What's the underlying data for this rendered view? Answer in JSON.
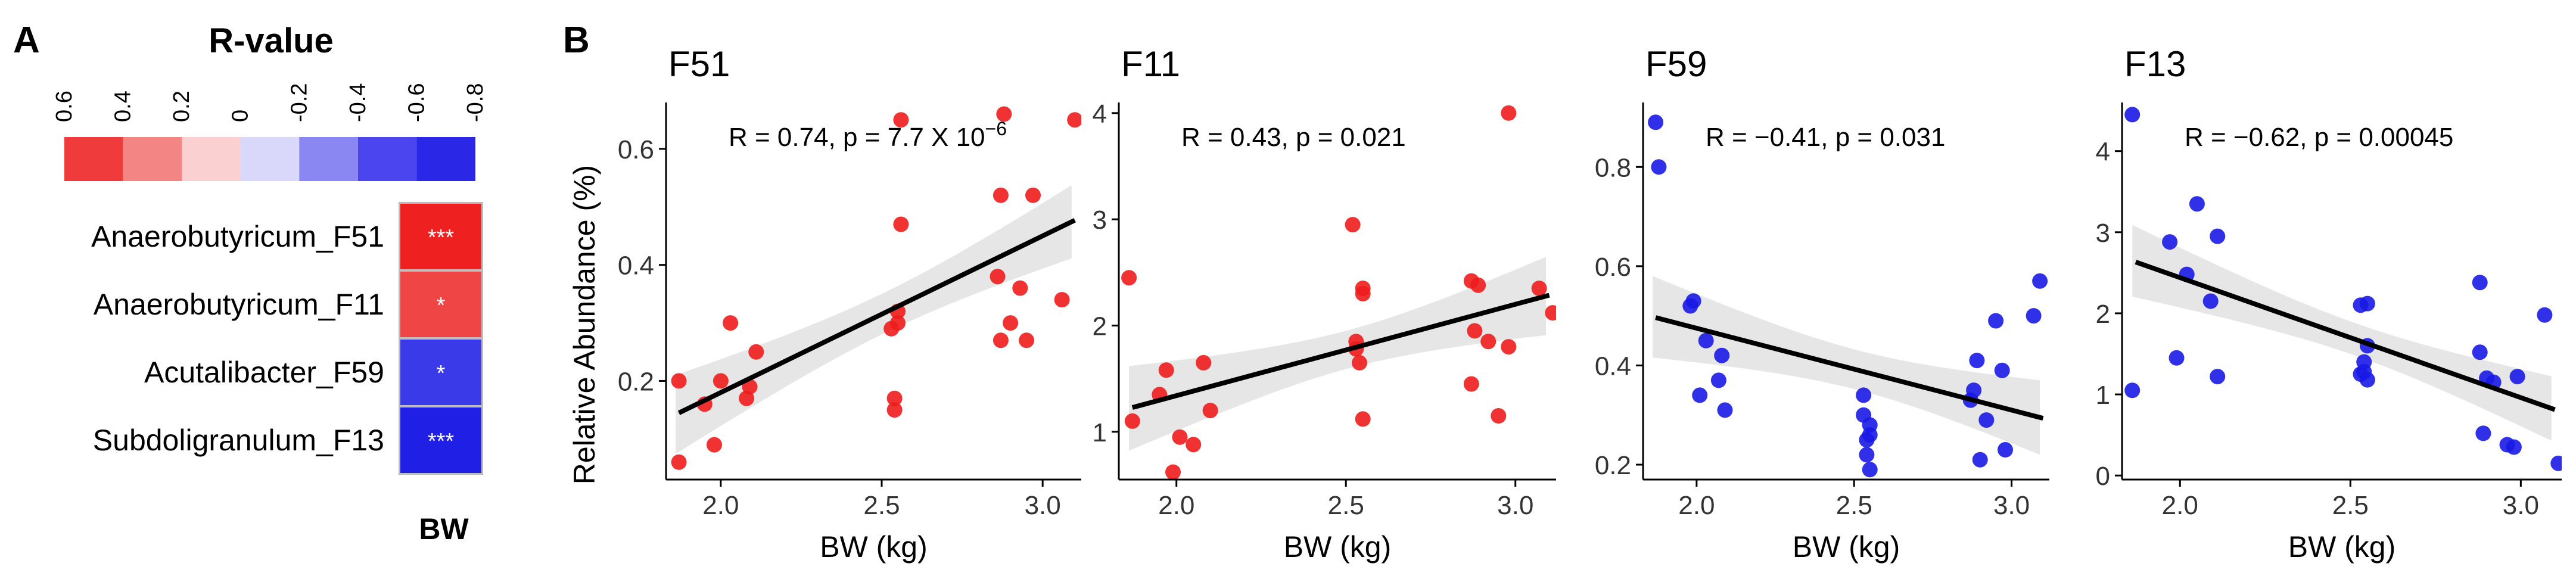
{
  "panel_a": {
    "label": "A",
    "legend_title": "R-value",
    "legend_ticks": [
      "0.6",
      "0.4",
      "0.2",
      "0",
      "-0.2",
      "-0.4",
      "-0.6",
      "-0.8"
    ],
    "legend_colors": [
      "#ef3b3b",
      "#f48585",
      "#fbd0d0",
      "#d9d8fb",
      "#8a87f2",
      "#4a45ee",
      "#2a27e6"
    ],
    "rows": [
      {
        "name": "Anaerobutyricum_F51",
        "r": 0.74,
        "stars": "***",
        "color": "#ef2020"
      },
      {
        "name": "Anaerobutyricum_F11",
        "r": 0.43,
        "stars": "*",
        "color": "#ef4545"
      },
      {
        "name": "Acutalibacter_F59",
        "r": -0.41,
        "stars": "*",
        "color": "#3a3ae8"
      },
      {
        "name": "Subdoligranulum_F13",
        "r": -0.62,
        "stars": "***",
        "color": "#1f1fe6"
      }
    ],
    "column_label": "BW"
  },
  "panel_b": {
    "label": "B",
    "ylabel": "Relative Abundance (%)"
  },
  "chart_data": [
    {
      "type": "scatter",
      "title": "F51",
      "xlabel": "BW (kg)",
      "ylabel": "Relative Abundance (%)",
      "color": "#ee1c1c",
      "xlim": [
        1.83,
        3.12
      ],
      "ylim": [
        0.03,
        0.68
      ],
      "xticks": [
        "2.0",
        "2.5",
        "3.0"
      ],
      "xtick_values": [
        2.0,
        2.5,
        3.0
      ],
      "yticks": [
        "0.2",
        "0.4",
        "0.6"
      ],
      "ytick_values": [
        0.2,
        0.4,
        0.6
      ],
      "stat": {
        "prefix": "R = 0.74, p = 7.7 X 10",
        "sup": "−6"
      },
      "fit": {
        "slope": 0.27,
        "intercept": -0.36
      },
      "band": {
        "se0": 0.035,
        "slope_se": 0.09
      },
      "points": [
        [
          1.87,
          0.2
        ],
        [
          1.87,
          0.06
        ],
        [
          1.95,
          0.16
        ],
        [
          1.98,
          0.09
        ],
        [
          2.0,
          0.2
        ],
        [
          2.03,
          0.3
        ],
        [
          2.08,
          0.17
        ],
        [
          2.09,
          0.19
        ],
        [
          2.11,
          0.25
        ],
        [
          2.54,
          0.15
        ],
        [
          2.54,
          0.17
        ],
        [
          2.53,
          0.29
        ],
        [
          2.55,
          0.3
        ],
        [
          2.55,
          0.32
        ],
        [
          2.56,
          0.47
        ],
        [
          2.56,
          0.65
        ],
        [
          2.86,
          0.38
        ],
        [
          2.87,
          0.52
        ],
        [
          2.87,
          0.27
        ],
        [
          2.88,
          0.66
        ],
        [
          2.9,
          0.3
        ],
        [
          2.93,
          0.36
        ],
        [
          2.95,
          0.27
        ],
        [
          2.97,
          0.52
        ],
        [
          3.06,
          0.34
        ],
        [
          3.1,
          0.65
        ]
      ]
    },
    {
      "type": "scatter",
      "title": "F11",
      "xlabel": "BW (kg)",
      "ylabel": "",
      "color": "#ee1c1c",
      "xlim": [
        1.83,
        3.12
      ],
      "ylim": [
        0.55,
        4.1
      ],
      "xticks": [
        "2.0",
        "2.5",
        "3.0"
      ],
      "xtick_values": [
        2.0,
        2.5,
        3.0
      ],
      "yticks": [
        "1",
        "2",
        "3",
        "4"
      ],
      "ytick_values": [
        1,
        2,
        3,
        4
      ],
      "stat": {
        "prefix": "R = 0.43, p = 0.021",
        "sup": ""
      },
      "fit": {
        "slope": 0.86,
        "intercept": -0.38
      },
      "band": {
        "se0": 0.18,
        "slope_se": 0.55
      },
      "points": [
        [
          1.86,
          2.45
        ],
        [
          1.87,
          1.1
        ],
        [
          1.95,
          1.35
        ],
        [
          1.97,
          1.58
        ],
        [
          1.99,
          0.62
        ],
        [
          2.01,
          0.95
        ],
        [
          2.05,
          0.88
        ],
        [
          2.08,
          1.65
        ],
        [
          2.1,
          1.2
        ],
        [
          2.52,
          2.95
        ],
        [
          2.53,
          1.85
        ],
        [
          2.53,
          1.78
        ],
        [
          2.54,
          1.65
        ],
        [
          2.55,
          2.3
        ],
        [
          2.55,
          2.35
        ],
        [
          2.55,
          1.12
        ],
        [
          2.87,
          2.42
        ],
        [
          2.87,
          1.45
        ],
        [
          2.88,
          1.95
        ],
        [
          2.89,
          2.38
        ],
        [
          2.92,
          1.85
        ],
        [
          2.95,
          1.15
        ],
        [
          2.98,
          4.0
        ],
        [
          2.98,
          1.8
        ],
        [
          3.07,
          2.35
        ],
        [
          3.11,
          2.12
        ]
      ]
    },
    {
      "type": "scatter",
      "title": "F59",
      "xlabel": "BW (kg)",
      "ylabel": "",
      "color": "#1a1ae6",
      "xlim": [
        1.83,
        3.12
      ],
      "ylim": [
        0.17,
        0.93
      ],
      "xticks": [
        "2.0",
        "2.5",
        "3.0"
      ],
      "xtick_values": [
        2.0,
        2.5,
        3.0
      ],
      "yticks": [
        "0.2",
        "0.4",
        "0.6",
        "0.8"
      ],
      "ytick_values": [
        0.2,
        0.4,
        0.6,
        0.8
      ],
      "stat": {
        "prefix": "R = −0.41, p = 0.031",
        "sup": ""
      },
      "fit": {
        "slope": -0.165,
        "intercept": 0.805
      },
      "band": {
        "se0": 0.04,
        "slope_se": 0.11
      },
      "points": [
        [
          1.87,
          0.89
        ],
        [
          1.88,
          0.8
        ],
        [
          1.98,
          0.52
        ],
        [
          1.99,
          0.53
        ],
        [
          2.01,
          0.34
        ],
        [
          2.03,
          0.45
        ],
        [
          2.07,
          0.37
        ],
        [
          2.08,
          0.42
        ],
        [
          2.09,
          0.31
        ],
        [
          2.53,
          0.34
        ],
        [
          2.53,
          0.3
        ],
        [
          2.54,
          0.25
        ],
        [
          2.54,
          0.22
        ],
        [
          2.55,
          0.28
        ],
        [
          2.55,
          0.26
        ],
        [
          2.55,
          0.19
        ],
        [
          2.87,
          0.33
        ],
        [
          2.88,
          0.35
        ],
        [
          2.89,
          0.41
        ],
        [
          2.9,
          0.21
        ],
        [
          2.92,
          0.29
        ],
        [
          2.95,
          0.49
        ],
        [
          2.97,
          0.39
        ],
        [
          2.98,
          0.23
        ],
        [
          3.07,
          0.5
        ],
        [
          3.09,
          0.57
        ]
      ]
    },
    {
      "type": "scatter",
      "title": "F13",
      "xlabel": "BW (kg)",
      "ylabel": "",
      "color": "#1a1ae6",
      "xlim": [
        1.83,
        3.12
      ],
      "ylim": [
        -0.05,
        4.6
      ],
      "xticks": [
        "2.0",
        "2.5",
        "3.0"
      ],
      "xtick_values": [
        2.0,
        2.5,
        3.0
      ],
      "yticks": [
        "0",
        "1",
        "2",
        "3",
        "4"
      ],
      "ytick_values": [
        0,
        1,
        2,
        3,
        4
      ],
      "stat": {
        "prefix": "R = −0.62, p = 0.00045",
        "sup": ""
      },
      "fit": {
        "slope": -1.48,
        "intercept": 5.4
      },
      "band": {
        "se0": 0.2,
        "slope_se": 0.6
      },
      "points": [
        [
          1.86,
          4.45
        ],
        [
          1.86,
          1.05
        ],
        [
          1.97,
          2.88
        ],
        [
          1.99,
          1.45
        ],
        [
          2.02,
          2.48
        ],
        [
          2.05,
          3.35
        ],
        [
          2.09,
          2.15
        ],
        [
          2.11,
          1.22
        ],
        [
          2.11,
          2.95
        ],
        [
          2.53,
          2.1
        ],
        [
          2.53,
          1.25
        ],
        [
          2.54,
          1.4
        ],
        [
          2.54,
          1.28
        ],
        [
          2.55,
          2.12
        ],
        [
          2.55,
          1.6
        ],
        [
          2.55,
          1.18
        ],
        [
          2.88,
          1.52
        ],
        [
          2.88,
          2.38
        ],
        [
          2.89,
          0.52
        ],
        [
          2.9,
          1.2
        ],
        [
          2.92,
          1.15
        ],
        [
          2.96,
          0.38
        ],
        [
          2.98,
          0.35
        ],
        [
          2.99,
          1.22
        ],
        [
          3.07,
          1.98
        ],
        [
          3.11,
          0.15
        ]
      ]
    }
  ]
}
